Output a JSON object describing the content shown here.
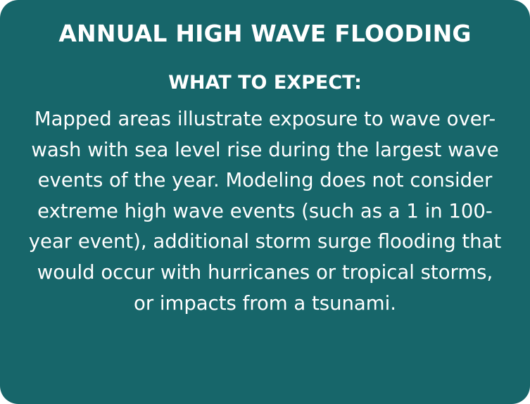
{
  "card": {
    "title": "ANNUAL HIGH WAVE FLOODING",
    "subtitle": "WHAT TO EXPECT:",
    "body": "Mapped areas illustrate exposure to wave over-wash with sea level rise during the largest wave events of the year. Modeling does not consider extreme high wave events (such as a 1 in 100-year event), additional storm surge flooding that would occur with hurricanes or tropical storms, or impacts from a tsunami.",
    "background_color": "#17666a",
    "text_color": "#ffffff"
  }
}
